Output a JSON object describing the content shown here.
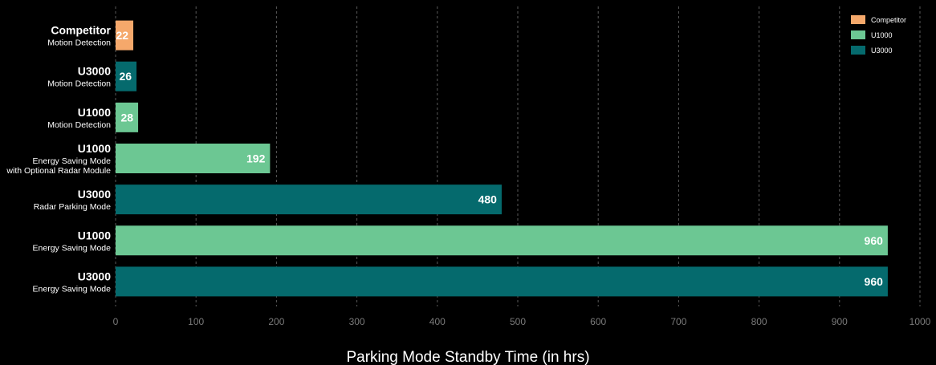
{
  "chart_data": {
    "type": "bar",
    "orientation": "horizontal",
    "xlabel": "Parking Mode Standby Time (in hrs)",
    "xlim": [
      0,
      1000
    ],
    "x_ticks": [
      0,
      100,
      200,
      300,
      400,
      500,
      600,
      700,
      800,
      900,
      1000
    ],
    "grid": "vertical-dashed",
    "legend_position": "top-right",
    "legend": [
      {
        "name": "Competitor",
        "color": "#f5a86b"
      },
      {
        "name": "U1000",
        "color": "#6cc793"
      },
      {
        "name": "U3000",
        "color": "#056a6d"
      }
    ],
    "bars": [
      {
        "title": "Competitor",
        "subtitle": [
          "Motion Detection"
        ],
        "series": "Competitor",
        "value": 22,
        "label": "22"
      },
      {
        "title": "U3000",
        "subtitle": [
          "Motion Detection"
        ],
        "series": "U3000",
        "value": 26,
        "label": "26"
      },
      {
        "title": "U1000",
        "subtitle": [
          "Motion Detection"
        ],
        "series": "U1000",
        "value": 28,
        "label": "28"
      },
      {
        "title": "U1000",
        "subtitle": [
          "Energy Saving Mode",
          "with Optional Radar Module"
        ],
        "series": "U1000",
        "value": 192,
        "label": "192"
      },
      {
        "title": "U3000",
        "subtitle": [
          "Radar Parking Mode"
        ],
        "series": "U3000",
        "value": 480,
        "label": "480"
      },
      {
        "title": "U1000",
        "subtitle": [
          "Energy Saving Mode"
        ],
        "series": "U1000",
        "value": 960,
        "label": "960"
      },
      {
        "title": "U3000",
        "subtitle": [
          "Energy Saving Mode"
        ],
        "series": "U3000",
        "value": 960,
        "label": "960"
      }
    ]
  }
}
